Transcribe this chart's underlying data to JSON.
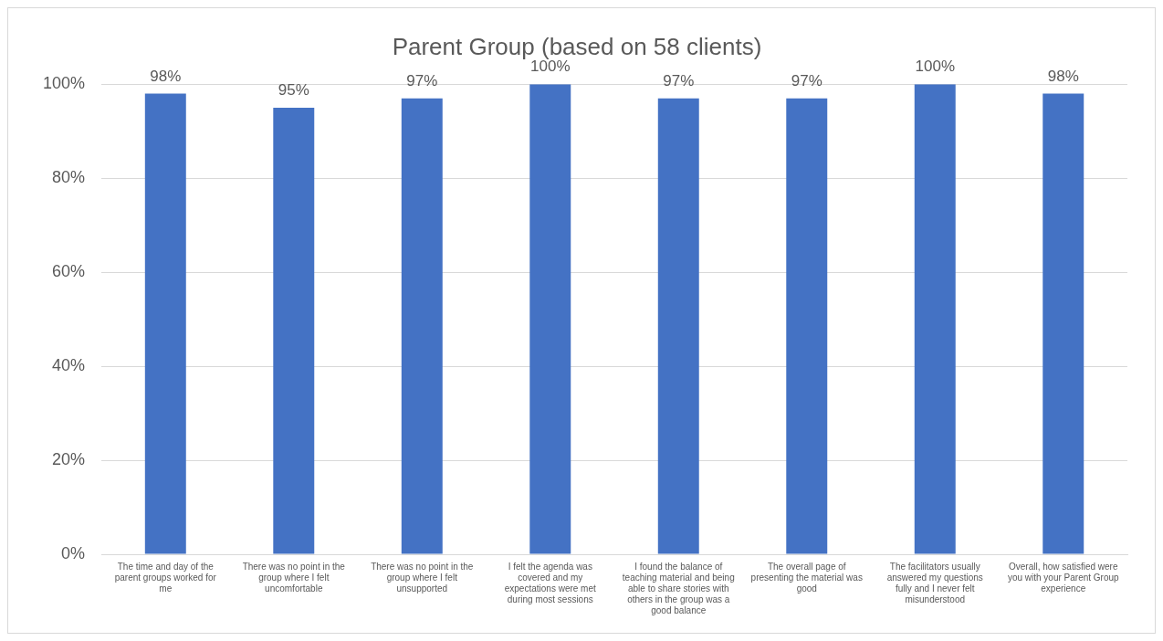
{
  "chart_data": {
    "type": "bar",
    "title": "Parent Group (based on 58 clients)",
    "categories": [
      "The time and day of the parent groups worked for me",
      "There was no point in the group where I felt uncomfortable",
      "There was no point in the group where I felt unsupported",
      "I felt the agenda was covered and my expectations were met during most sessions",
      "I found the balance of teaching material and being able to share stories with others in the group was a good balance",
      "The overall page of presenting the material was good",
      "The facilitators usually answered my questions fully and I never felt misunderstood",
      "Overall, how satisfied were you with your Parent Group experience"
    ],
    "values": [
      98,
      95,
      97,
      100,
      97,
      97,
      100,
      98
    ],
    "value_labels": [
      "98%",
      "95%",
      "97%",
      "100%",
      "97%",
      "97%",
      "100%",
      "98%"
    ],
    "color": "#4472c4",
    "ylim": [
      0,
      100
    ],
    "yticks": [
      {
        "value": 0,
        "label": "0%"
      },
      {
        "value": 20,
        "label": "20%"
      },
      {
        "value": 40,
        "label": "40%"
      },
      {
        "value": 60,
        "label": "60%"
      },
      {
        "value": 80,
        "label": "80%"
      },
      {
        "value": 100,
        "label": "100%"
      }
    ],
    "grid": "y",
    "legend": false
  }
}
